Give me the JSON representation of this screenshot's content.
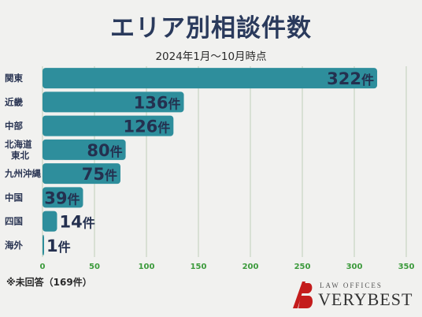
{
  "chart_data": {
    "type": "bar",
    "orientation": "horizontal",
    "title": "エリア別相談件数",
    "subtitle": "2024年1月〜10月時点",
    "categories": [
      "関東",
      "近畿",
      "中部",
      "北海道\n東北",
      "九州沖縄",
      "中国",
      "四国",
      "海外"
    ],
    "values": [
      322,
      136,
      126,
      80,
      75,
      39,
      14,
      1
    ],
    "value_labels": [
      "322件",
      "136件",
      "126件",
      "80件",
      "75件",
      "39件",
      "14件",
      "1件"
    ],
    "xlim": [
      0,
      350
    ],
    "xticks": [
      "0",
      "50",
      "100",
      "150",
      "200",
      "250",
      "300",
      "350"
    ],
    "grid": true,
    "bar_color": "#2e8e9c",
    "grid_color": "#bfcfb8",
    "tick_color": "#3b9a3b"
  },
  "note": "※未回答（169件）",
  "logo": {
    "top_text": "LAW OFFICES",
    "name": "VERYBEST"
  }
}
